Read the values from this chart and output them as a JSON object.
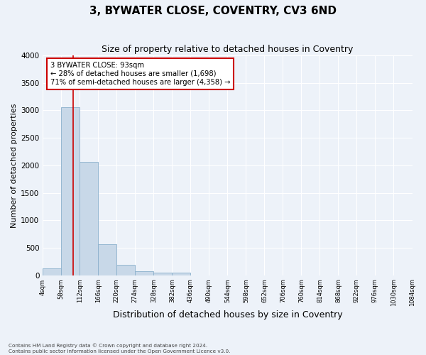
{
  "title": "3, BYWATER CLOSE, COVENTRY, CV3 6ND",
  "subtitle": "Size of property relative to detached houses in Coventry",
  "xlabel": "Distribution of detached houses by size in Coventry",
  "ylabel": "Number of detached properties",
  "footer_line1": "Contains HM Land Registry data © Crown copyright and database right 2024.",
  "footer_line2": "Contains public sector information licensed under the Open Government Licence v3.0.",
  "tick_labels": [
    "4sqm",
    "58sqm",
    "112sqm",
    "166sqm",
    "220sqm",
    "274sqm",
    "328sqm",
    "382sqm",
    "436sqm",
    "490sqm",
    "544sqm",
    "598sqm",
    "652sqm",
    "706sqm",
    "760sqm",
    "814sqm",
    "868sqm",
    "922sqm",
    "976sqm",
    "1030sqm",
    "1084sqm"
  ],
  "bar_values": [
    130,
    3060,
    2060,
    560,
    190,
    70,
    50,
    40,
    0,
    0,
    0,
    0,
    0,
    0,
    0,
    0,
    0,
    0,
    0,
    0
  ],
  "bar_color": "#c8d8e8",
  "bar_edge_color": "#8ab0cc",
  "property_bin": 1,
  "red_line_color": "#cc0000",
  "annotation_text": "3 BYWATER CLOSE: 93sqm\n← 28% of detached houses are smaller (1,698)\n71% of semi-detached houses are larger (4,358) →",
  "annotation_box_color": "#cc0000",
  "background_color": "#edf2f9",
  "ylim": [
    0,
    4000
  ],
  "yticks": [
    0,
    500,
    1000,
    1500,
    2000,
    2500,
    3000,
    3500,
    4000
  ],
  "grid_color": "#ffffff",
  "title_fontsize": 11,
  "subtitle_fontsize": 9,
  "xlabel_fontsize": 9,
  "ylabel_fontsize": 8
}
